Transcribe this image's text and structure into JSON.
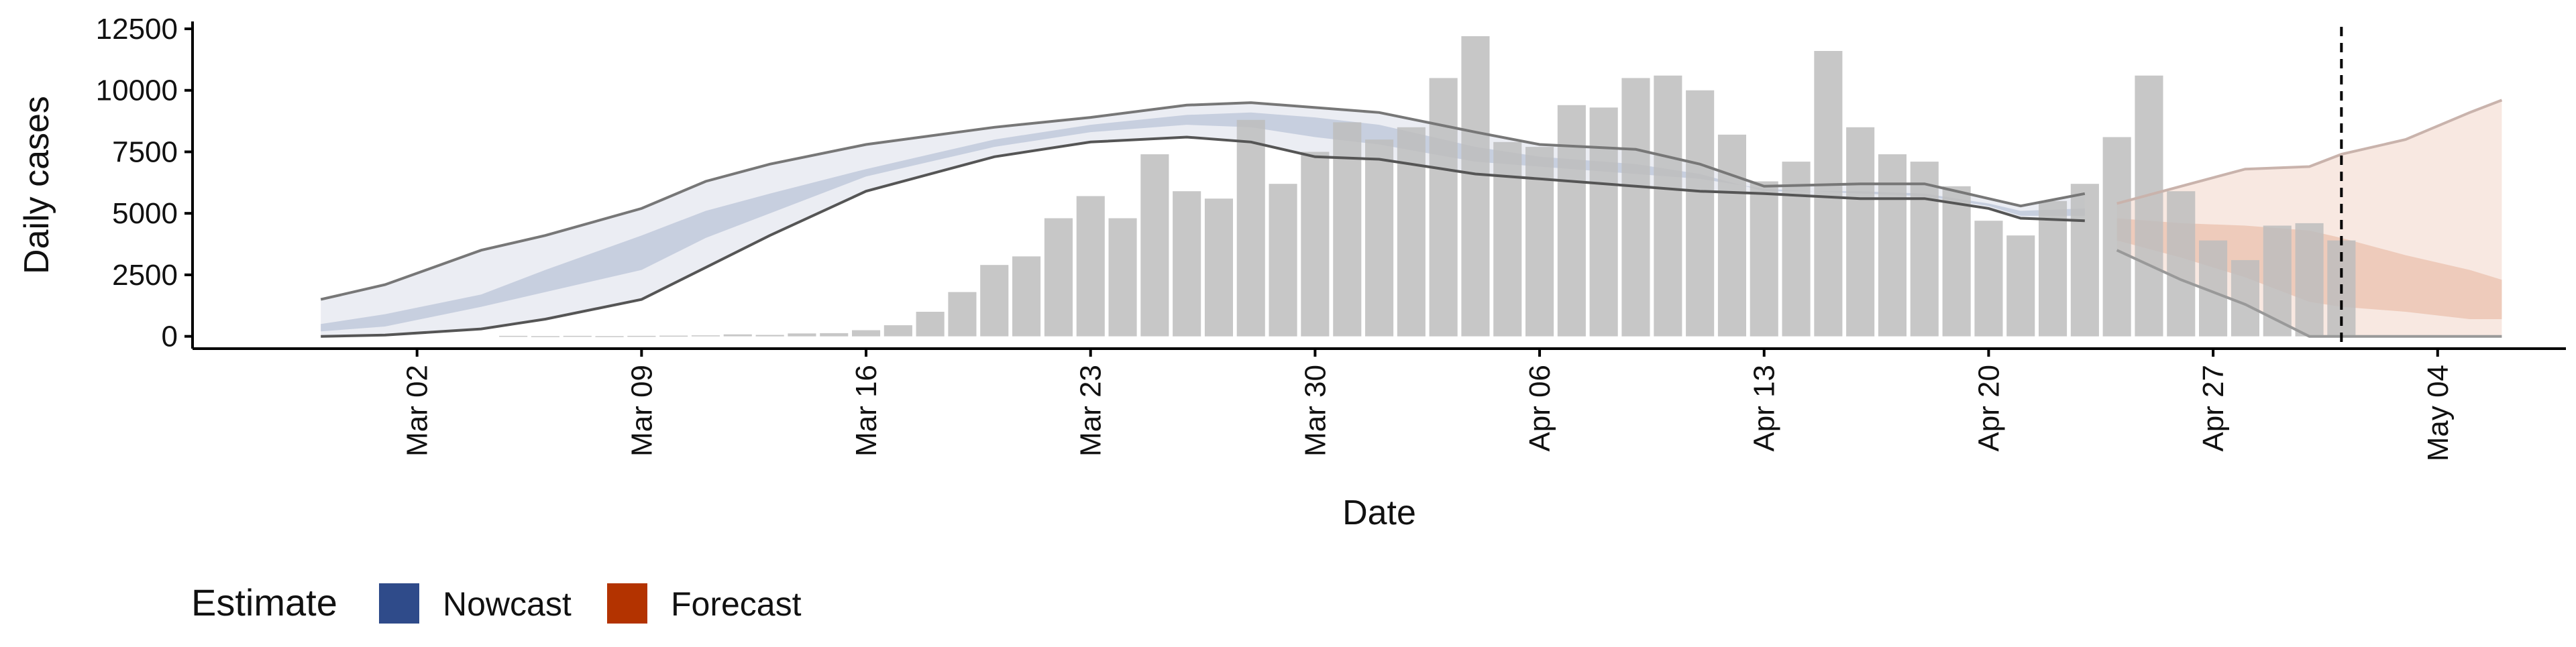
{
  "chart_data": {
    "type": "bar",
    "xlabel": "Date",
    "ylabel": "Daily cases",
    "ylim": [
      -500,
      12800
    ],
    "yticks": [
      0,
      2500,
      5000,
      7500,
      10000,
      12500
    ],
    "ytick_labels": [
      "0",
      "2500",
      "5000",
      "7500",
      "10000",
      "12500"
    ],
    "xlim": [
      "2020-02-24",
      "2020-05-08"
    ],
    "xticks": [
      "2020-03-02",
      "2020-03-09",
      "2020-03-16",
      "2020-03-23",
      "2020-03-30",
      "2020-04-06",
      "2020-04-13",
      "2020-04-20",
      "2020-04-27",
      "2020-05-04"
    ],
    "xtick_labels": [
      "Mar 02",
      "Mar 09",
      "Mar 16",
      "Mar 23",
      "Mar 30",
      "Apr 06",
      "Apr 13",
      "Apr 20",
      "Apr 27",
      "May 04"
    ],
    "x_label_rotation": -90,
    "grid": false,
    "cutoff_date": "2020-05-01",
    "legend": {
      "position": "bottom-left",
      "title": "Estimate",
      "items": [
        {
          "label": "Nowcast",
          "color": "#2f4b8a"
        },
        {
          "label": "Forecast",
          "color": "#b33300"
        }
      ]
    },
    "colors": {
      "bars": "#bdbdbd",
      "nowcast": "#2f4b8a",
      "forecast": "#b33300",
      "outer_line": "#7f7f7f",
      "inner_line": "#555555",
      "cutoff_line": "#000000"
    },
    "bars": {
      "start_date": "2020-03-05",
      "values": [
        20,
        10,
        20,
        10,
        20,
        30,
        40,
        80,
        60,
        120,
        130,
        250,
        450,
        1000,
        1800,
        2900,
        3250,
        4800,
        5700,
        4800,
        7400,
        5900,
        5600,
        8800,
        6200,
        7500,
        8700,
        8000,
        8500,
        10500,
        12200,
        7900,
        7700,
        9400,
        9300,
        10500,
        10600,
        10000,
        8200,
        6300,
        7100,
        11600,
        8500,
        7400,
        7100,
        6100,
        4700,
        4100,
        5500,
        6200,
        8100,
        10600,
        5900,
        3900,
        3100,
        4500,
        4600,
        3900
      ]
    },
    "series": [
      {
        "name": "Nowcast",
        "type": "band",
        "dates": [
          "2020-02-28",
          "2020-03-01",
          "2020-03-04",
          "2020-03-06",
          "2020-03-09",
          "2020-03-11",
          "2020-03-13",
          "2020-03-16",
          "2020-03-20",
          "2020-03-23",
          "2020-03-26",
          "2020-03-28",
          "2020-03-30",
          "2020-04-01",
          "2020-04-04",
          "2020-04-06",
          "2020-04-09",
          "2020-04-11",
          "2020-04-13",
          "2020-04-16",
          "2020-04-18",
          "2020-04-20",
          "2020-04-21",
          "2020-04-23"
        ],
        "outer_lower": [
          0,
          50,
          300,
          700,
          1500,
          2800,
          4100,
          5900,
          7300,
          7900,
          8100,
          7900,
          7300,
          7200,
          6600,
          6400,
          6100,
          5900,
          5800,
          5600,
          5600,
          5200,
          4800,
          4700
        ],
        "outer_upper": [
          1500,
          2100,
          3500,
          4100,
          5200,
          6300,
          7000,
          7800,
          8500,
          8900,
          9400,
          9500,
          9300,
          9100,
          8300,
          7800,
          7600,
          7000,
          6100,
          6200,
          6200,
          5600,
          5300,
          5800
        ],
        "inner_lower": [
          200,
          400,
          1200,
          1800,
          2700,
          4000,
          5000,
          6500,
          7700,
          8300,
          8600,
          8500,
          8100,
          7800,
          7100,
          6900,
          6600,
          6400,
          6000,
          5800,
          5700,
          5300,
          4900,
          4900
        ],
        "inner_upper": [
          500,
          900,
          1700,
          2700,
          4100,
          5100,
          5800,
          6800,
          8000,
          8600,
          9000,
          9100,
          8900,
          8600,
          7700,
          7300,
          7000,
          6600,
          5900,
          5900,
          5800,
          5400,
          5100,
          5200
        ]
      },
      {
        "name": "Forecast",
        "type": "band",
        "dates": [
          "2020-04-24",
          "2020-04-26",
          "2020-04-28",
          "2020-04-30",
          "2020-05-01",
          "2020-05-03",
          "2020-05-05",
          "2020-05-06"
        ],
        "outer_lower": [
          3500,
          2300,
          1300,
          0,
          0,
          0,
          0,
          0
        ],
        "outer_upper": [
          5400,
          6100,
          6800,
          6900,
          7400,
          8000,
          9100,
          9600
        ],
        "inner_lower": [
          3900,
          3200,
          2400,
          1400,
          1200,
          1000,
          700,
          700
        ],
        "inner_upper": [
          4800,
          4600,
          4500,
          4300,
          4000,
          3300,
          2700,
          2300
        ]
      }
    ]
  }
}
